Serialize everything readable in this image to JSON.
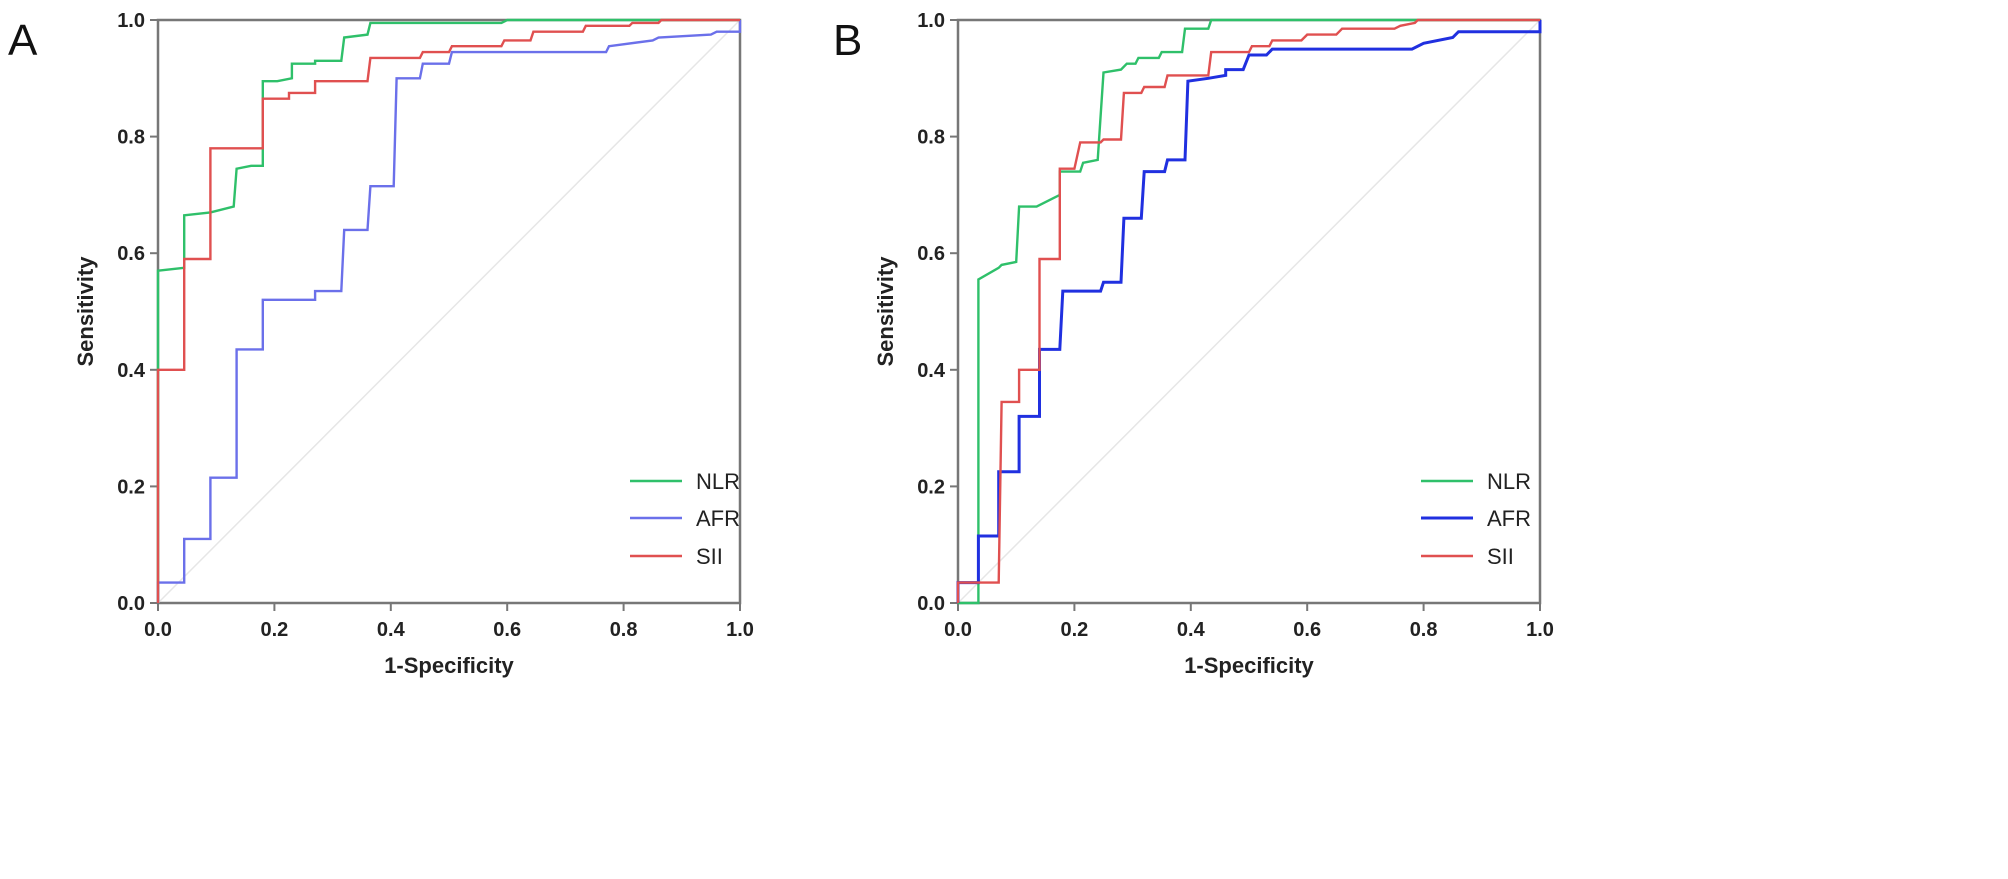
{
  "chart_data": [
    {
      "type": "line",
      "panel_label": "A",
      "xlabel": "1-Specificity",
      "ylabel": "Sensitivity",
      "xlim": [
        0,
        1
      ],
      "ylim": [
        0,
        1
      ],
      "xticks": [
        "0.0",
        "0.2",
        "0.4",
        "0.6",
        "0.8",
        "1.0"
      ],
      "yticks": [
        "0.0",
        "0.2",
        "0.4",
        "0.6",
        "0.8",
        "1.0"
      ],
      "legend_position": "bottom-right",
      "reference_line": true,
      "series": [
        {
          "name": "NLR",
          "color": "#2fc06a",
          "points": [
            [
              0,
              0
            ],
            [
              0,
              0.57
            ],
            [
              0.045,
              0.575
            ],
            [
              0.045,
              0.665
            ],
            [
              0.09,
              0.67
            ],
            [
              0.13,
              0.68
            ],
            [
              0.135,
              0.745
            ],
            [
              0.16,
              0.75
            ],
            [
              0.18,
              0.75
            ],
            [
              0.18,
              0.895
            ],
            [
              0.205,
              0.895
            ],
            [
              0.23,
              0.9
            ],
            [
              0.23,
              0.925
            ],
            [
              0.27,
              0.925
            ],
            [
              0.27,
              0.93
            ],
            [
              0.315,
              0.93
            ],
            [
              0.32,
              0.97
            ],
            [
              0.36,
              0.975
            ],
            [
              0.365,
              0.995
            ],
            [
              0.59,
              0.995
            ],
            [
              0.6,
              1.0
            ],
            [
              1.0,
              1.0
            ]
          ]
        },
        {
          "name": "AFR",
          "color": "#6b70ea",
          "points": [
            [
              0,
              0
            ],
            [
              0,
              0.035
            ],
            [
              0.045,
              0.035
            ],
            [
              0.045,
              0.11
            ],
            [
              0.09,
              0.11
            ],
            [
              0.09,
              0.215
            ],
            [
              0.135,
              0.215
            ],
            [
              0.135,
              0.435
            ],
            [
              0.18,
              0.435
            ],
            [
              0.18,
              0.52
            ],
            [
              0.27,
              0.52
            ],
            [
              0.27,
              0.535
            ],
            [
              0.315,
              0.535
            ],
            [
              0.32,
              0.64
            ],
            [
              0.36,
              0.64
            ],
            [
              0.365,
              0.715
            ],
            [
              0.405,
              0.715
            ],
            [
              0.41,
              0.9
            ],
            [
              0.45,
              0.9
            ],
            [
              0.455,
              0.925
            ],
            [
              0.5,
              0.925
            ],
            [
              0.505,
              0.945
            ],
            [
              0.77,
              0.945
            ],
            [
              0.775,
              0.955
            ],
            [
              0.85,
              0.965
            ],
            [
              0.86,
              0.97
            ],
            [
              0.95,
              0.975
            ],
            [
              0.96,
              0.98
            ],
            [
              1.0,
              0.98
            ],
            [
              1.0,
              1.0
            ]
          ]
        },
        {
          "name": "SII",
          "color": "#e05050",
          "points": [
            [
              0,
              0
            ],
            [
              0,
              0.4
            ],
            [
              0.045,
              0.4
            ],
            [
              0.045,
              0.59
            ],
            [
              0.09,
              0.59
            ],
            [
              0.09,
              0.78
            ],
            [
              0.18,
              0.78
            ],
            [
              0.18,
              0.865
            ],
            [
              0.225,
              0.865
            ],
            [
              0.225,
              0.875
            ],
            [
              0.27,
              0.875
            ],
            [
              0.27,
              0.895
            ],
            [
              0.36,
              0.895
            ],
            [
              0.365,
              0.935
            ],
            [
              0.45,
              0.935
            ],
            [
              0.455,
              0.945
            ],
            [
              0.5,
              0.945
            ],
            [
              0.505,
              0.955
            ],
            [
              0.59,
              0.955
            ],
            [
              0.595,
              0.965
            ],
            [
              0.64,
              0.965
            ],
            [
              0.645,
              0.98
            ],
            [
              0.73,
              0.98
            ],
            [
              0.735,
              0.99
            ],
            [
              0.81,
              0.99
            ],
            [
              0.815,
              0.995
            ],
            [
              0.86,
              0.995
            ],
            [
              0.865,
              1.0
            ],
            [
              1.0,
              1.0
            ]
          ]
        }
      ]
    },
    {
      "type": "line",
      "panel_label": "B",
      "xlabel": "1-Specificity",
      "ylabel": "Sensitivity",
      "xlim": [
        0,
        1
      ],
      "ylim": [
        0,
        1
      ],
      "xticks": [
        "0.0",
        "0.2",
        "0.4",
        "0.6",
        "0.8",
        "1.0"
      ],
      "yticks": [
        "0.0",
        "0.2",
        "0.4",
        "0.6",
        "0.8",
        "1.0"
      ],
      "legend_position": "bottom-right",
      "reference_line": true,
      "series": [
        {
          "name": "NLR",
          "color": "#2fc06a",
          "points": [
            [
              0,
              0
            ],
            [
              0.035,
              0
            ],
            [
              0.035,
              0.555
            ],
            [
              0.07,
              0.575
            ],
            [
              0.075,
              0.58
            ],
            [
              0.1,
              0.585
            ],
            [
              0.105,
              0.68
            ],
            [
              0.135,
              0.68
            ],
            [
              0.165,
              0.695
            ],
            [
              0.175,
              0.7
            ],
            [
              0.175,
              0.74
            ],
            [
              0.21,
              0.74
            ],
            [
              0.215,
              0.755
            ],
            [
              0.24,
              0.76
            ],
            [
              0.25,
              0.91
            ],
            [
              0.28,
              0.915
            ],
            [
              0.29,
              0.925
            ],
            [
              0.305,
              0.925
            ],
            [
              0.31,
              0.935
            ],
            [
              0.345,
              0.935
            ],
            [
              0.35,
              0.945
            ],
            [
              0.385,
              0.945
            ],
            [
              0.39,
              0.985
            ],
            [
              0.43,
              0.985
            ],
            [
              0.435,
              1.0
            ],
            [
              1.0,
              1.0
            ]
          ]
        },
        {
          "name": "AFR",
          "color": "#2030e0",
          "points": [
            [
              0,
              0
            ],
            [
              0,
              0.035
            ],
            [
              0.035,
              0.035
            ],
            [
              0.035,
              0.115
            ],
            [
              0.07,
              0.115
            ],
            [
              0.07,
              0.225
            ],
            [
              0.105,
              0.225
            ],
            [
              0.105,
              0.32
            ],
            [
              0.14,
              0.32
            ],
            [
              0.14,
              0.435
            ],
            [
              0.175,
              0.435
            ],
            [
              0.18,
              0.535
            ],
            [
              0.245,
              0.535
            ],
            [
              0.25,
              0.55
            ],
            [
              0.28,
              0.55
            ],
            [
              0.285,
              0.66
            ],
            [
              0.315,
              0.66
            ],
            [
              0.32,
              0.74
            ],
            [
              0.355,
              0.74
            ],
            [
              0.36,
              0.76
            ],
            [
              0.39,
              0.76
            ],
            [
              0.395,
              0.895
            ],
            [
              0.43,
              0.9
            ],
            [
              0.46,
              0.905
            ],
            [
              0.46,
              0.915
            ],
            [
              0.49,
              0.915
            ],
            [
              0.5,
              0.94
            ],
            [
              0.53,
              0.94
            ],
            [
              0.54,
              0.95
            ],
            [
              0.78,
              0.95
            ],
            [
              0.8,
              0.96
            ],
            [
              0.85,
              0.97
            ],
            [
              0.86,
              0.98
            ],
            [
              1.0,
              0.98
            ],
            [
              1.0,
              1.0
            ]
          ]
        },
        {
          "name": "SII",
          "color": "#e05050",
          "points": [
            [
              0,
              0
            ],
            [
              0,
              0.035
            ],
            [
              0.07,
              0.035
            ],
            [
              0.075,
              0.345
            ],
            [
              0.105,
              0.345
            ],
            [
              0.105,
              0.4
            ],
            [
              0.14,
              0.4
            ],
            [
              0.14,
              0.59
            ],
            [
              0.175,
              0.59
            ],
            [
              0.175,
              0.745
            ],
            [
              0.2,
              0.745
            ],
            [
              0.21,
              0.79
            ],
            [
              0.245,
              0.79
            ],
            [
              0.25,
              0.795
            ],
            [
              0.28,
              0.795
            ],
            [
              0.285,
              0.875
            ],
            [
              0.315,
              0.875
            ],
            [
              0.32,
              0.885
            ],
            [
              0.355,
              0.885
            ],
            [
              0.36,
              0.905
            ],
            [
              0.43,
              0.905
            ],
            [
              0.435,
              0.945
            ],
            [
              0.5,
              0.945
            ],
            [
              0.505,
              0.955
            ],
            [
              0.535,
              0.955
            ],
            [
              0.54,
              0.965
            ],
            [
              0.59,
              0.965
            ],
            [
              0.6,
              0.975
            ],
            [
              0.65,
              0.975
            ],
            [
              0.66,
              0.985
            ],
            [
              0.75,
              0.985
            ],
            [
              0.76,
              0.99
            ],
            [
              0.785,
              0.995
            ],
            [
              0.79,
              1.0
            ],
            [
              1.0,
              1.0
            ]
          ]
        }
      ]
    }
  ]
}
